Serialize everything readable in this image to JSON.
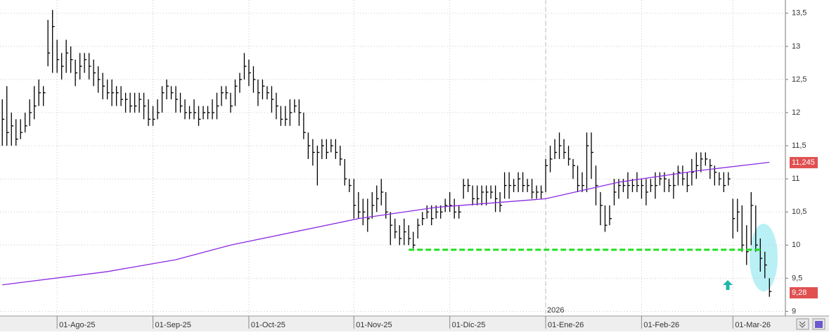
{
  "chart_data": {
    "type": "ohlc",
    "xlim": [
      -0.5,
      171.5
    ],
    "ylim": [
      8.93,
      13.7
    ],
    "xticks": [
      {
        "value": 12,
        "label": "01-Ago-25"
      },
      {
        "value": 33,
        "label": "01-Sep-25"
      },
      {
        "value": 54,
        "label": "01-Oct-25"
      },
      {
        "value": 77,
        "label": "01-Nov-25"
      },
      {
        "value": 98,
        "label": "01-Dic-25"
      },
      {
        "value": 119,
        "label": "01-Ene-26"
      },
      {
        "value": 140,
        "label": "01-Feb-26"
      },
      {
        "value": 160,
        "label": "01-Mar-26"
      }
    ],
    "yticks": [
      9,
      {
        "value": 9.5,
        "label": "9,5"
      },
      10,
      {
        "value": 10.5,
        "label": "10,5"
      },
      11,
      {
        "value": 11.5,
        "label": "11,5"
      },
      12,
      {
        "value": 12.5,
        "label": "12,5"
      },
      13,
      {
        "value": 13.5,
        "label": "13,5"
      }
    ],
    "grid": true,
    "color": "#000000",
    "close": [
      11.9,
      11.7,
      11.8,
      11.6,
      11.7,
      11.8,
      12.0,
      12.1,
      12.3,
      12.3,
      12.9,
      13.3,
      12.8,
      12.7,
      12.9,
      12.8,
      12.6,
      12.7,
      12.8,
      12.7,
      12.6,
      12.5,
      12.4,
      12.3,
      12.3,
      12.3,
      12.2,
      12.2,
      12.1,
      12.1,
      12.2,
      12.1,
      11.9,
      11.9,
      12.0,
      12.3,
      12.4,
      12.3,
      12.2,
      12.1,
      12.0,
      12.0,
      12.0,
      11.9,
      12.0,
      12.0,
      12.0,
      12.1,
      12.3,
      12.3,
      12.1,
      12.4,
      12.5,
      12.7,
      12.6,
      12.5,
      12.3,
      12.4,
      12.3,
      12.2,
      12.1,
      11.9,
      11.9,
      12.0,
      12.1,
      12.0,
      11.7,
      11.5,
      11.4,
      11.4,
      11.5,
      11.4,
      11.5,
      11.4,
      11.3,
      11.0,
      10.9,
      10.6,
      10.5,
      10.5,
      10.4,
      10.6,
      10.7,
      10.8,
      10.5,
      10.3,
      10.2,
      10.1,
      10.2,
      10.1,
      10.0,
      10.3,
      10.4,
      10.5,
      10.4,
      10.5,
      10.5,
      10.6,
      10.6,
      10.5,
      10.5,
      10.9,
      10.9,
      10.7,
      10.7,
      10.8,
      10.8,
      10.8,
      10.7,
      10.6,
      10.9,
      10.9,
      10.9,
      11.0,
      10.9,
      10.9,
      10.8,
      10.8,
      10.8,
      11.2,
      11.3,
      11.4,
      11.5,
      11.4,
      11.3,
      11.2,
      10.9,
      10.9,
      11.5,
      11.4,
      10.9,
      10.6,
      10.3,
      10.4,
      10.8,
      10.9,
      10.9,
      10.9,
      10.9,
      10.9,
      10.9,
      10.8,
      10.9,
      10.9,
      11.0,
      11.0,
      10.9,
      10.9,
      11.1,
      11.0,
      10.9,
      11.1,
      11.2,
      11.3,
      11.3,
      11.2,
      11.1,
      11.0,
      10.9,
      11.0,
      10.4,
      10.5,
      10.0,
      9.9,
      10.6,
      10.0,
      9.8,
      9.7,
      9.3
    ],
    "high": [
      12.2,
      12.4,
      12.0,
      11.9,
      11.9,
      12.0,
      12.2,
      12.4,
      12.5,
      12.4,
      13.4,
      13.55,
      13.1,
      12.9,
      13.1,
      13.0,
      12.8,
      12.9,
      12.9,
      12.9,
      12.8,
      12.7,
      12.6,
      12.5,
      12.5,
      12.4,
      12.4,
      12.3,
      12.3,
      12.3,
      12.3,
      12.3,
      12.2,
      12.1,
      12.2,
      12.4,
      12.5,
      12.4,
      12.4,
      12.3,
      12.2,
      12.1,
      12.2,
      12.1,
      12.1,
      12.1,
      12.2,
      12.3,
      12.4,
      12.4,
      12.3,
      12.5,
      12.6,
      12.9,
      12.8,
      12.7,
      12.5,
      12.5,
      12.4,
      12.4,
      12.3,
      12.1,
      12.1,
      12.2,
      12.2,
      12.2,
      12.0,
      11.7,
      11.6,
      11.5,
      11.6,
      11.6,
      11.6,
      11.6,
      11.5,
      11.3,
      11.0,
      11.0,
      10.8,
      10.7,
      10.7,
      10.8,
      10.9,
      11.0,
      10.8,
      10.5,
      10.4,
      10.3,
      10.4,
      10.3,
      10.2,
      10.4,
      10.5,
      10.6,
      10.6,
      10.6,
      10.6,
      10.7,
      10.8,
      10.7,
      10.6,
      11.0,
      11.0,
      10.9,
      10.9,
      10.9,
      10.9,
      10.9,
      10.9,
      10.8,
      11.1,
      11.1,
      11.0,
      11.1,
      11.1,
      11.0,
      11.0,
      10.9,
      10.9,
      11.3,
      11.5,
      11.6,
      11.7,
      11.6,
      11.5,
      11.3,
      11.2,
      11.1,
      11.7,
      11.7,
      11.2,
      10.8,
      10.6,
      10.6,
      11.0,
      11.0,
      11.0,
      11.1,
      11.0,
      11.1,
      11.0,
      11.0,
      11.0,
      11.1,
      11.1,
      11.1,
      11.0,
      11.1,
      11.2,
      11.2,
      11.1,
      11.3,
      11.4,
      11.4,
      11.4,
      11.3,
      11.2,
      11.1,
      11.1,
      11.1,
      10.7,
      10.7,
      10.6,
      10.3,
      10.8,
      10.6,
      10.1,
      9.9,
      9.5
    ],
    "low": [
      11.5,
      11.5,
      11.5,
      11.5,
      11.6,
      11.7,
      11.8,
      11.9,
      12.1,
      12.1,
      12.7,
      12.6,
      12.6,
      12.5,
      12.6,
      12.6,
      12.4,
      12.5,
      12.6,
      12.5,
      12.4,
      12.3,
      12.2,
      12.2,
      12.1,
      12.1,
      12.1,
      12.0,
      12.0,
      12.0,
      12.0,
      11.9,
      11.8,
      11.8,
      11.9,
      12.0,
      12.2,
      12.2,
      12.0,
      12.0,
      11.9,
      11.9,
      11.9,
      11.8,
      11.9,
      11.9,
      11.9,
      11.9,
      12.1,
      12.2,
      12.0,
      12.1,
      12.3,
      12.5,
      12.4,
      12.3,
      12.1,
      12.2,
      12.2,
      12.0,
      11.9,
      11.8,
      11.8,
      11.8,
      12.0,
      11.8,
      11.6,
      11.3,
      11.2,
      10.9,
      11.3,
      11.3,
      11.4,
      11.3,
      11.2,
      10.9,
      10.8,
      10.4,
      10.4,
      10.3,
      10.2,
      10.4,
      10.5,
      10.6,
      10.4,
      10.0,
      10.1,
      10.0,
      10.0,
      10.0,
      9.95,
      10.1,
      10.3,
      10.4,
      10.3,
      10.4,
      10.4,
      10.5,
      10.5,
      10.4,
      10.4,
      10.7,
      10.8,
      10.6,
      10.6,
      10.6,
      10.6,
      10.7,
      10.5,
      10.5,
      10.7,
      10.7,
      10.8,
      10.8,
      10.8,
      10.8,
      10.7,
      10.7,
      10.7,
      10.8,
      11.1,
      11.3,
      11.3,
      11.3,
      11.2,
      11.0,
      10.8,
      10.8,
      10.8,
      11.0,
      10.6,
      10.3,
      10.2,
      10.3,
      10.6,
      10.7,
      10.8,
      10.7,
      10.8,
      10.8,
      10.7,
      10.6,
      10.8,
      10.7,
      10.9,
      10.8,
      10.8,
      10.7,
      10.9,
      10.9,
      10.8,
      10.9,
      11.0,
      11.1,
      11.2,
      11.0,
      10.9,
      10.9,
      10.8,
      10.9,
      10.1,
      10.2,
      9.9,
      9.7,
      10.0,
      9.9,
      9.6,
      9.5,
      9.22
    ],
    "ma": {
      "color": "#8b2be2",
      "x": [
        0,
        23,
        38,
        50,
        78,
        95,
        119,
        135,
        152,
        168
      ],
      "values": [
        9.4,
        9.6,
        9.78,
        10.0,
        10.4,
        10.57,
        10.7,
        10.95,
        11.12,
        11.25
      ]
    },
    "support": {
      "color": "#22dd22",
      "value": 9.93,
      "x": [
        89,
        166.5
      ]
    },
    "year_marker": {
      "x": 119,
      "label": "2026"
    },
    "price_tags": [
      {
        "value": 11.245,
        "label": "11,245"
      },
      {
        "value": 9.28,
        "label": "9,28"
      }
    ]
  }
}
